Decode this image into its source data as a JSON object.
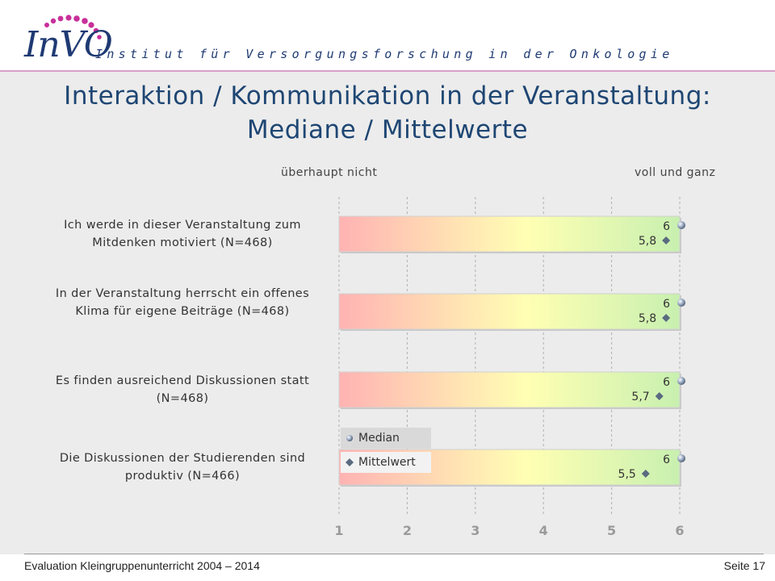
{
  "header": {
    "logo_text": "InVO",
    "tagline": "Institut für Versorgungsforschung in der Onkologie"
  },
  "page_title": "Interaktion / Kommunikation in der Veranstaltung: Mediane / Mittelwerte",
  "chart_data": {
    "type": "bar",
    "scale_labels": {
      "left": "überhaupt nicht",
      "right": "voll und ganz"
    },
    "xlim": [
      1,
      6
    ],
    "x_ticks": [
      "1",
      "2",
      "3",
      "4",
      "5",
      "6"
    ],
    "grid": true,
    "legend": {
      "placement": "bottom-left",
      "entries": [
        {
          "name": "Median",
          "marker": "circle"
        },
        {
          "name": "Mittelwert",
          "marker": "diamond"
        }
      ]
    },
    "items": [
      {
        "label": "Ich werde in dieser Veranstaltung zum Mitdenken motiviert (N=468)",
        "median": 6,
        "mean": 5.8,
        "median_label": "6",
        "mean_label": "5,8"
      },
      {
        "label": "In der Veranstaltung herrscht ein offenes Klima für eigene Beiträge (N=468)",
        "median": 6,
        "mean": 5.8,
        "median_label": "6",
        "mean_label": "5,8"
      },
      {
        "label": "Es finden ausreichend Diskussionen statt (N=468)",
        "median": 6,
        "mean": 5.7,
        "median_label": "6",
        "mean_label": "5,7"
      },
      {
        "label": "Die Diskussionen der Studierenden sind produktiv (N=466)",
        "median": 6,
        "mean": 5.5,
        "median_label": "6",
        "mean_label": "5,5"
      }
    ],
    "colors": {
      "bar_start": "#ffb3b3",
      "bar_mid": "#ffffb3",
      "bar_end": "#c8f0b0",
      "marker": "#5a6a80",
      "tick_label": "#9a9a9a"
    }
  },
  "footer": {
    "left": "Evaluation Kleingruppenunterricht 2004 – 2014",
    "right": "Seite 17"
  }
}
